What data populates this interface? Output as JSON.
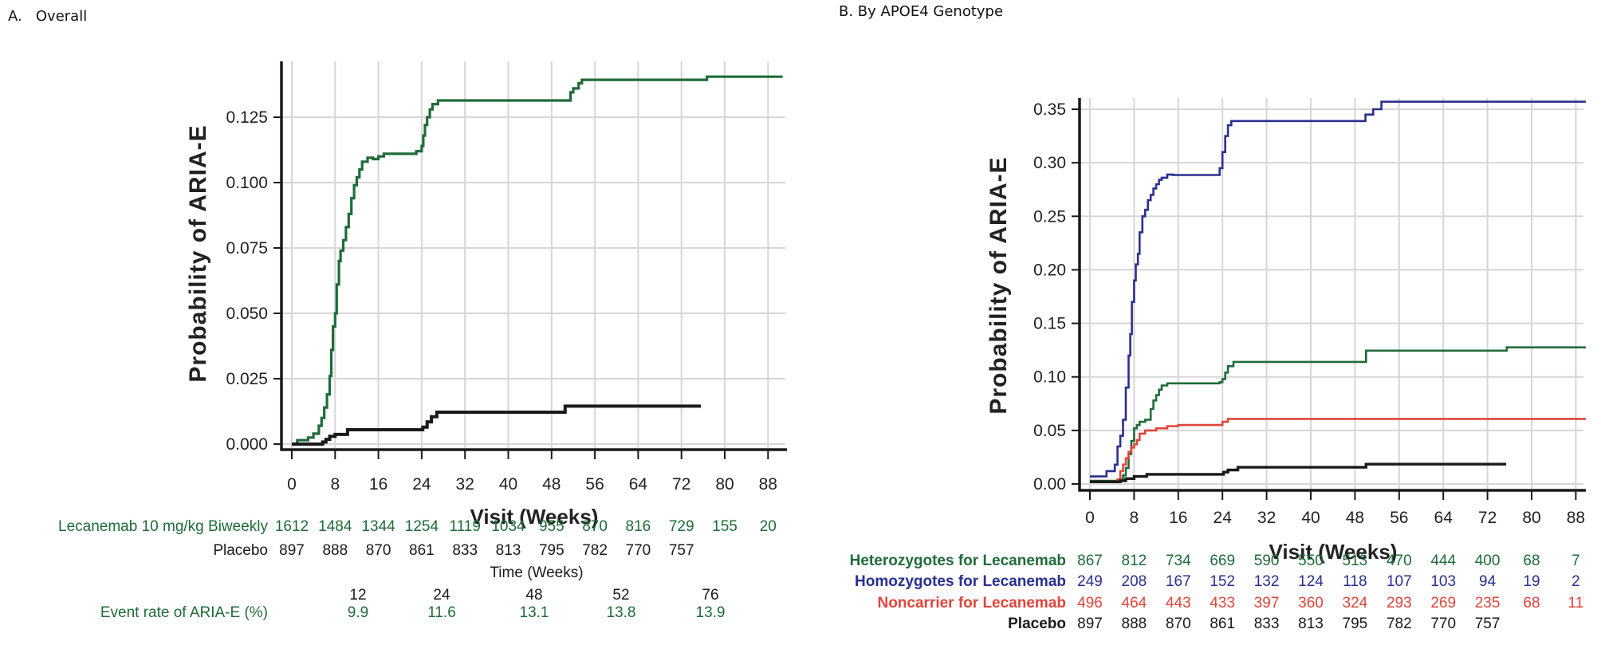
{
  "colors": {
    "lecanemab": "#1f6b3a",
    "placebo": "#1a1a1a",
    "heterozygotes": "#1f6b3a",
    "homozygotes": "#2b2f8f",
    "noncarrier": "#e0453a"
  },
  "chart_data": [
    {
      "type": "line",
      "panel": "A",
      "title": "A.   Overall",
      "xlabel": "Visit (Weeks)",
      "ylabel": "Probability of ARIA-E",
      "xlim": [
        0,
        88
      ],
      "ylim": [
        0,
        0.146
      ],
      "xticks": [
        0,
        8,
        16,
        24,
        32,
        40,
        48,
        56,
        64,
        72,
        80,
        88
      ],
      "yticks": [
        "0.000",
        "0.025",
        "0.050",
        "0.075",
        "0.100",
        "0.125"
      ],
      "ytick_values": [
        0,
        0.025,
        0.05,
        0.075,
        0.1,
        0.125
      ],
      "grid": true,
      "step": true,
      "series": [
        {
          "name": "Lecanemab 10 mg/kg Biweekly",
          "color_key": "lecanemab",
          "x": [
            0,
            1,
            3,
            4,
            5,
            5.5,
            6,
            6.5,
            7,
            7.3,
            7.6,
            8,
            8.3,
            8.7,
            9,
            9.5,
            10,
            10.5,
            11,
            11.5,
            12,
            12.5,
            13,
            14,
            15,
            16,
            17,
            22,
            23,
            24,
            24.3,
            24.6,
            25,
            25.5,
            26,
            27,
            50.7,
            51.5,
            52,
            53,
            53.6,
            76.7,
            90.7
          ],
          "y": [
            0,
            0.0015,
            0.0025,
            0.004,
            0.007,
            0.01,
            0.014,
            0.019,
            0.026,
            0.036,
            0.045,
            0.05,
            0.061,
            0.07,
            0.074,
            0.078,
            0.083,
            0.088,
            0.094,
            0.099,
            0.102,
            0.105,
            0.108,
            0.1095,
            0.109,
            0.11,
            0.111,
            0.111,
            0.112,
            0.114,
            0.118,
            0.122,
            0.125,
            0.128,
            0.13,
            0.1314,
            0.1314,
            0.1345,
            0.136,
            0.138,
            0.1393,
            0.1405,
            0.1405
          ]
        },
        {
          "name": "Placebo",
          "color_key": "placebo",
          "x": [
            0,
            5.7,
            6.3,
            7,
            8,
            10.3,
            24.2,
            25,
            25.8,
            26.8,
            50.5,
            75.6
          ],
          "y": [
            0,
            0.0008,
            0.0018,
            0.003,
            0.0037,
            0.0055,
            0.0065,
            0.0085,
            0.0105,
            0.0122,
            0.0145,
            0.0145
          ]
        }
      ],
      "risk_table": {
        "rows": [
          {
            "label": "Lecanemab 10 mg/kg Biweekly",
            "color_key": "lecanemab",
            "values": [
              "1612",
              "1484",
              "1344",
              "1254",
              "1119",
              "1034",
              "955",
              "870",
              "816",
              "729",
              "155",
              "20"
            ]
          },
          {
            "label": "Placebo",
            "color_key": "placebo",
            "values": [
              "897",
              "888",
              "870",
              "861",
              "833",
              "813",
              "795",
              "782",
              "770",
              "757"
            ]
          }
        ]
      },
      "event_rate_table": {
        "header": "Time (Weeks)",
        "weeks": [
          "12",
          "24",
          "48",
          "52",
          "76"
        ],
        "label": "Event rate of ARIA-E (%)",
        "rates": [
          "9.9",
          "11.6",
          "13.1",
          "13.8",
          "13.9"
        ]
      }
    },
    {
      "type": "line",
      "panel": "B",
      "title": "B. By APOE4 Genotype",
      "xlabel": "Visit (Weeks)",
      "ylabel": "Probability of ARIA-E",
      "xlim": [
        0,
        88
      ],
      "ylim": [
        0,
        0.36
      ],
      "xticks": [
        0,
        8,
        16,
        24,
        32,
        40,
        48,
        56,
        64,
        72,
        80,
        88
      ],
      "yticks": [
        "0.00",
        "0.05",
        "0.10",
        "0.15",
        "0.20",
        "0.25",
        "0.30",
        "0.35"
      ],
      "ytick_values": [
        0,
        0.05,
        0.1,
        0.15,
        0.2,
        0.25,
        0.3,
        0.35
      ],
      "grid": true,
      "step": true,
      "series": [
        {
          "name": "Homozygotes for Lecanemab",
          "color_key": "homozygotes",
          "x": [
            0,
            3,
            4.5,
            5,
            5.5,
            6,
            6.5,
            7,
            7.3,
            7.6,
            8,
            8.3,
            8.7,
            9,
            9.5,
            10,
            10.5,
            11,
            11.5,
            12,
            12.5,
            13,
            14,
            15,
            16,
            23.5,
            24,
            24.5,
            25,
            25.6,
            49.9,
            51.3,
            52.8,
            89.8
          ],
          "y": [
            0.007,
            0.012,
            0.018,
            0.035,
            0.045,
            0.06,
            0.09,
            0.12,
            0.14,
            0.17,
            0.19,
            0.205,
            0.215,
            0.235,
            0.25,
            0.256,
            0.265,
            0.27,
            0.276,
            0.28,
            0.284,
            0.286,
            0.289,
            0.2886,
            0.2886,
            0.295,
            0.31,
            0.325,
            0.335,
            0.339,
            0.345,
            0.35,
            0.357,
            0.357
          ]
        },
        {
          "name": "Heterozygotes for Lecanemab",
          "color_key": "heterozygotes",
          "x": [
            0,
            5,
            6,
            6.5,
            7,
            7.5,
            8,
            8.5,
            9,
            10,
            11,
            11.5,
            12,
            12.5,
            13,
            14,
            16,
            23.5,
            24,
            24.5,
            25,
            26,
            50,
            75.5,
            89.8
          ],
          "y": [
            0.003,
            0.004,
            0.008,
            0.015,
            0.028,
            0.04,
            0.052,
            0.055,
            0.058,
            0.06,
            0.07,
            0.078,
            0.083,
            0.088,
            0.092,
            0.094,
            0.094,
            0.095,
            0.098,
            0.104,
            0.11,
            0.114,
            0.1245,
            0.1276,
            0.1276
          ]
        },
        {
          "name": "Noncarrier for Lecanemab",
          "color_key": "noncarrier",
          "x": [
            0,
            5,
            5.5,
            6,
            6.5,
            7,
            7.5,
            8,
            8.5,
            9,
            10,
            12,
            14,
            16,
            24,
            25,
            89.8
          ],
          "y": [
            0.002,
            0.004,
            0.012,
            0.018,
            0.024,
            0.03,
            0.034,
            0.037,
            0.041,
            0.047,
            0.05,
            0.052,
            0.054,
            0.055,
            0.058,
            0.0608,
            0.0608
          ]
        },
        {
          "name": "Placebo",
          "color_key": "placebo",
          "x": [
            0,
            5.5,
            6.5,
            8,
            10.3,
            24.2,
            25,
            26.8,
            50,
            75.4
          ],
          "y": [
            0.002,
            0.003,
            0.005,
            0.007,
            0.009,
            0.011,
            0.013,
            0.0156,
            0.0185,
            0.0185
          ]
        }
      ],
      "risk_table": {
        "rows": [
          {
            "label": "Heterozygotes for Lecanemab",
            "color_key": "heterozygotes",
            "values": [
              "867",
              "812",
              "734",
              "669",
              "590",
              "550",
              "513",
              "470",
              "444",
              "400",
              "68",
              "7"
            ]
          },
          {
            "label": "Homozygotes for Lecanemab",
            "color_key": "homozygotes",
            "values": [
              "249",
              "208",
              "167",
              "152",
              "132",
              "124",
              "118",
              "107",
              "103",
              "94",
              "19",
              "2"
            ]
          },
          {
            "label": "Noncarrier for Lecanemab",
            "color_key": "noncarrier",
            "values": [
              "496",
              "464",
              "443",
              "433",
              "397",
              "360",
              "324",
              "293",
              "269",
              "235",
              "68",
              "11"
            ]
          },
          {
            "label": "Placebo",
            "color_key": "placebo",
            "values": [
              "897",
              "888",
              "870",
              "861",
              "833",
              "813",
              "795",
              "782",
              "770",
              "757"
            ]
          }
        ]
      }
    }
  ]
}
